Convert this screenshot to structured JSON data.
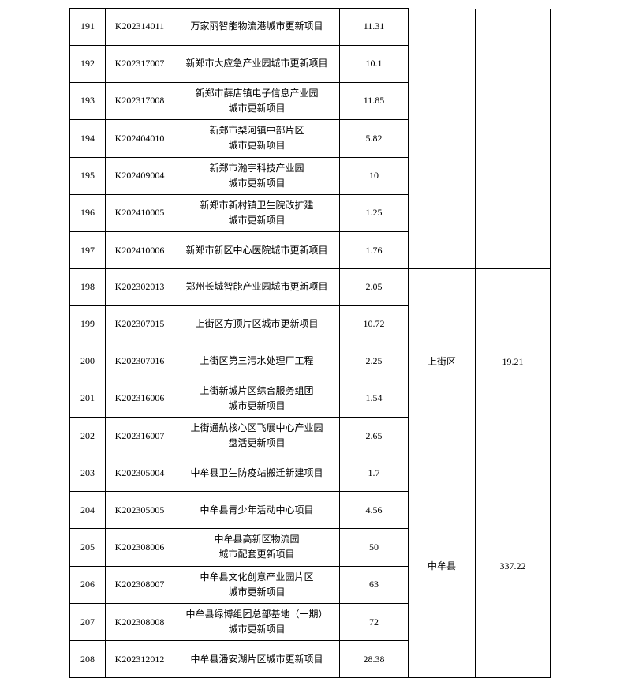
{
  "table": {
    "groups": [
      {
        "region": "",
        "total": "",
        "rows": [
          {
            "idx": "191",
            "code": "K202314011",
            "name": "万家丽智能物流港城市更新项目",
            "val": "11.31"
          },
          {
            "idx": "192",
            "code": "K202317007",
            "name": "新郑市大应急产业园城市更新项目",
            "val": "10.1"
          },
          {
            "idx": "193",
            "code": "K202317008",
            "name": "新郑市薛店镇电子信息产业园\n城市更新项目",
            "val": "11.85"
          },
          {
            "idx": "194",
            "code": "K202404010",
            "name": "新郑市梨河镇中部片区\n城市更新项目",
            "val": "5.82"
          },
          {
            "idx": "195",
            "code": "K202409004",
            "name": "新郑市瀚宇科技产业园\n城市更新项目",
            "val": "10"
          },
          {
            "idx": "196",
            "code": "K202410005",
            "name": "新郑市新村镇卫生院改扩建\n城市更新项目",
            "val": "1.25"
          },
          {
            "idx": "197",
            "code": "K202410006",
            "name": "新郑市新区中心医院城市更新项目",
            "val": "1.76"
          }
        ]
      },
      {
        "region": "上街区",
        "total": "19.21",
        "rows": [
          {
            "idx": "198",
            "code": "K202302013",
            "name": "郑州长城智能产业园城市更新项目",
            "val": "2.05"
          },
          {
            "idx": "199",
            "code": "K202307015",
            "name": "上街区方顶片区城市更新项目",
            "val": "10.72"
          },
          {
            "idx": "200",
            "code": "K202307016",
            "name": "上街区第三污水处理厂工程",
            "val": "2.25"
          },
          {
            "idx": "201",
            "code": "K202316006",
            "name": "上街新城片区综合服务组团\n城市更新项目",
            "val": "1.54"
          },
          {
            "idx": "202",
            "code": "K202316007",
            "name": "上街通航核心区飞展中心产业园\n盘活更新项目",
            "val": "2.65"
          }
        ]
      },
      {
        "region": "中牟县",
        "total": "337.22",
        "rows": [
          {
            "idx": "203",
            "code": "K202305004",
            "name": "中牟县卫生防疫站搬迁新建项目",
            "val": "1.7"
          },
          {
            "idx": "204",
            "code": "K202305005",
            "name": "中牟县青少年活动中心项目",
            "val": "4.56"
          },
          {
            "idx": "205",
            "code": "K202308006",
            "name": "中牟县高新区物流园\n城市配套更新项目",
            "val": "50"
          },
          {
            "idx": "206",
            "code": "K202308007",
            "name": "中牟县文化创意产业园片区\n城市更新项目",
            "val": "63"
          },
          {
            "idx": "207",
            "code": "K202308008",
            "name": "中牟县绿博组团总部基地（一期）\n城市更新项目",
            "val": "72"
          },
          {
            "idx": "208",
            "code": "K202312012",
            "name": "中牟县潘安湖片区城市更新项目",
            "val": "28.38"
          }
        ]
      }
    ]
  }
}
